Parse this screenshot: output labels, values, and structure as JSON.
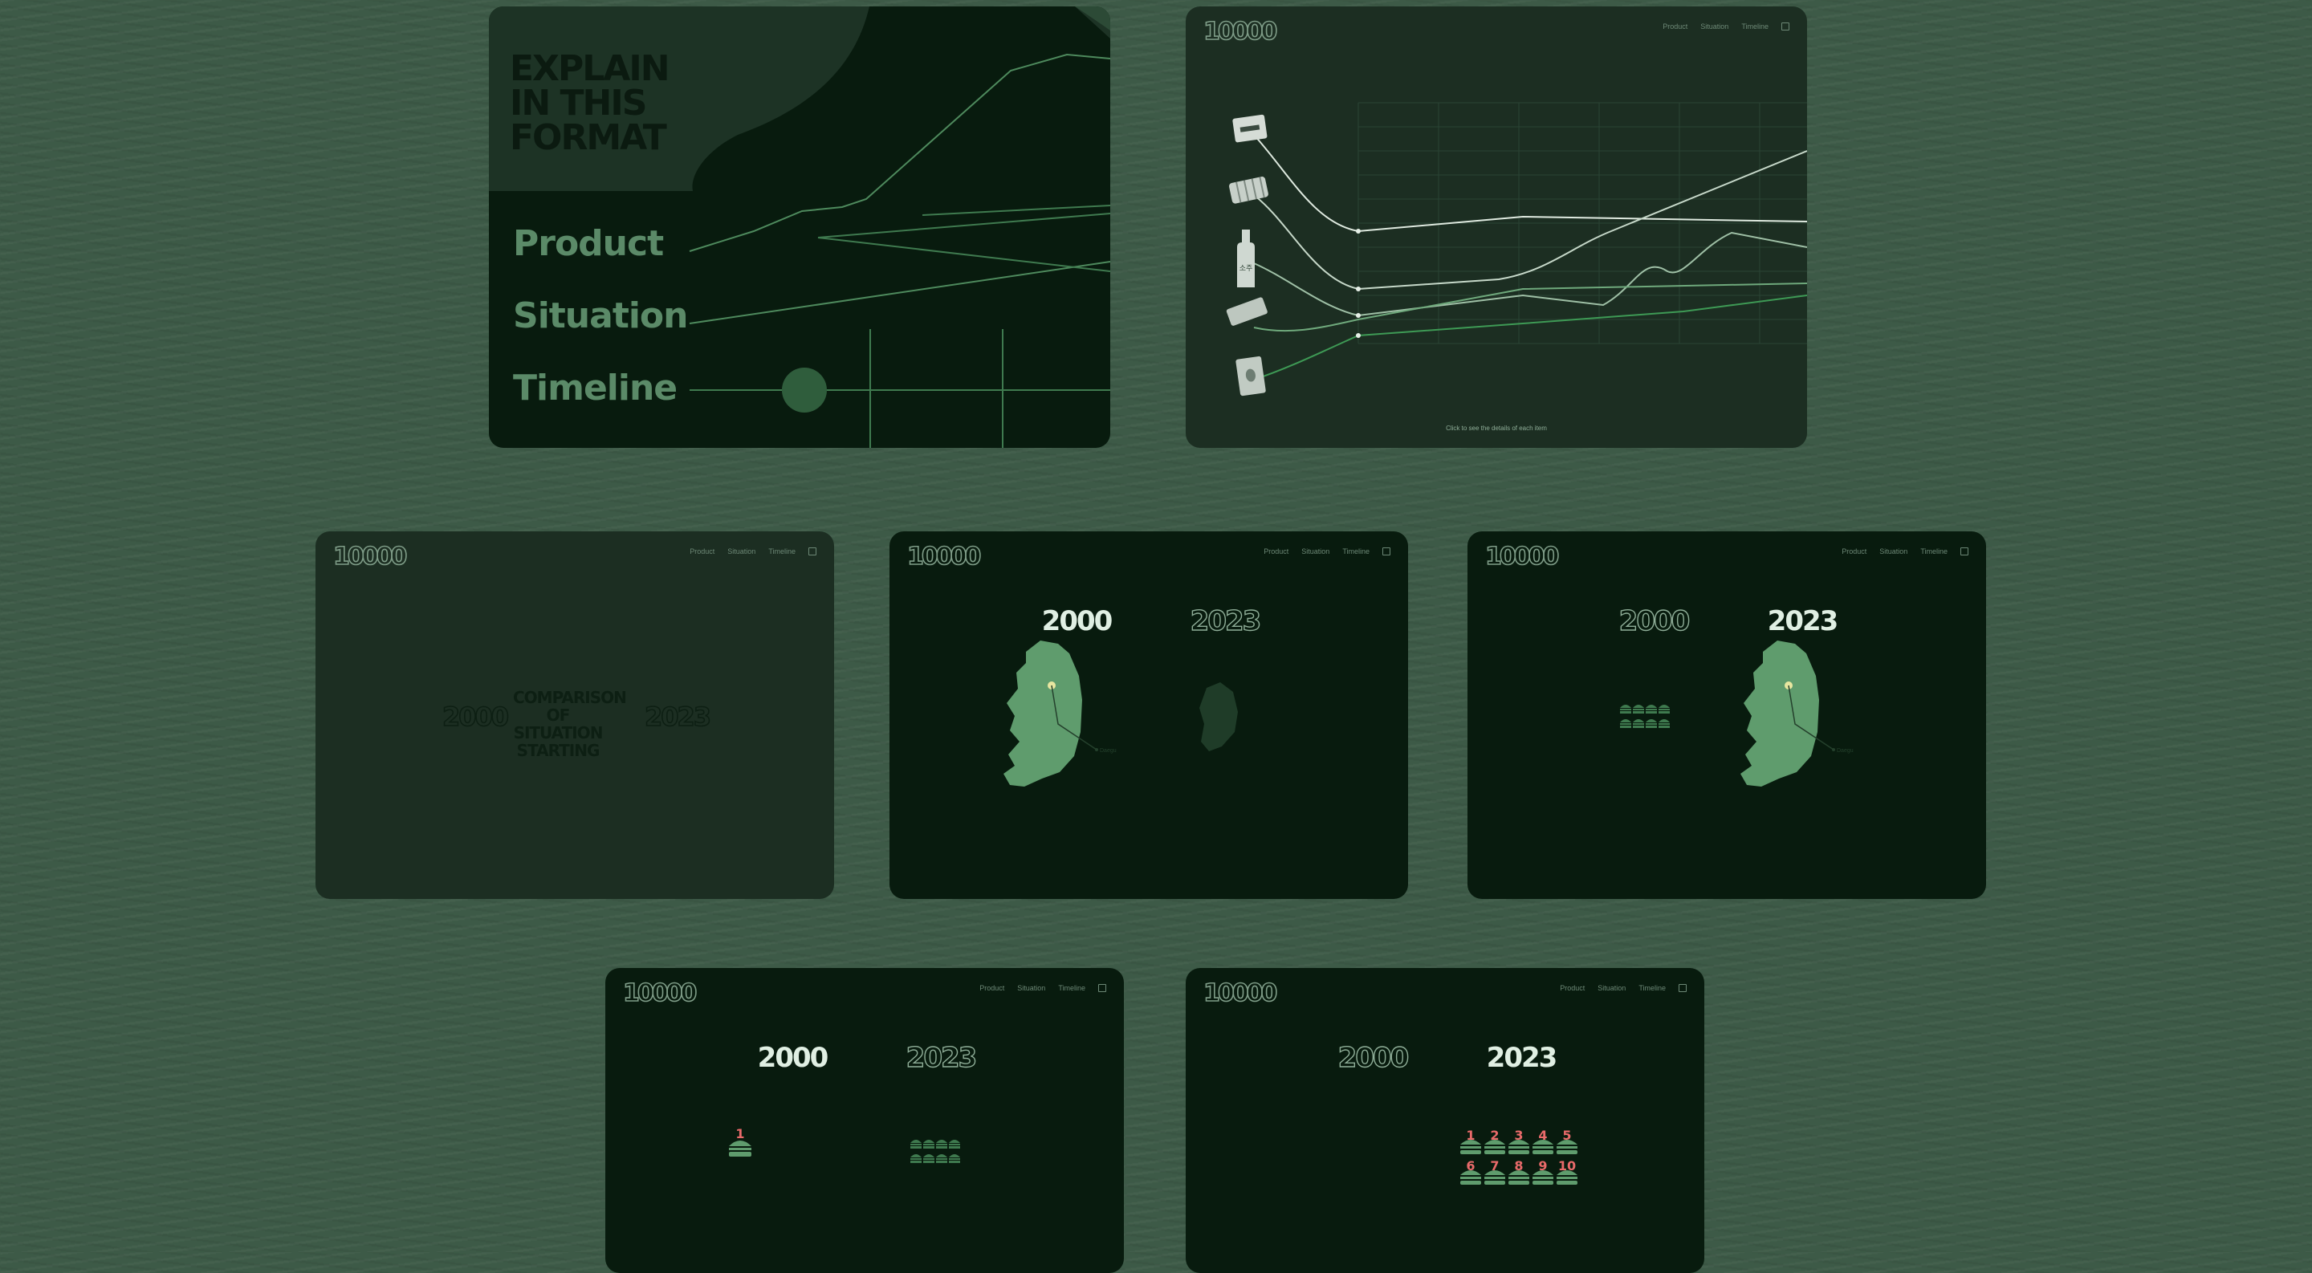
{
  "brand": {
    "logo": "10000"
  },
  "nav": {
    "product": "Product",
    "situation": "Situation",
    "timeline": "Timeline"
  },
  "intro": {
    "title_lines": [
      "EXPLAIN",
      "IN THIS",
      "FORMAT"
    ],
    "menu": [
      "Product",
      "Situation",
      "Timeline"
    ]
  },
  "product_chart": {
    "hint": "Click to see the details of each item",
    "items": [
      "packet-icon",
      "can-stack-icon",
      "bottle-icon",
      "tray-icon",
      "pouch-icon"
    ],
    "bottle_label": "소주"
  },
  "comparison": {
    "year_from": "2000",
    "year_to": "2023",
    "caption_lines": [
      "COMPARISON",
      "OF SITUATION",
      "STARTING"
    ]
  },
  "map_city": "Daegu",
  "years": {
    "y2000": "2000",
    "y2023": "2023"
  },
  "burger_numbers": [
    "1",
    "2",
    "3",
    "4",
    "5",
    "6",
    "7",
    "8",
    "9",
    "10"
  ],
  "colors": {
    "accent_green": "#5b9a6c",
    "highlight": "#e8e6a0",
    "number_red": "#e86a6a"
  }
}
